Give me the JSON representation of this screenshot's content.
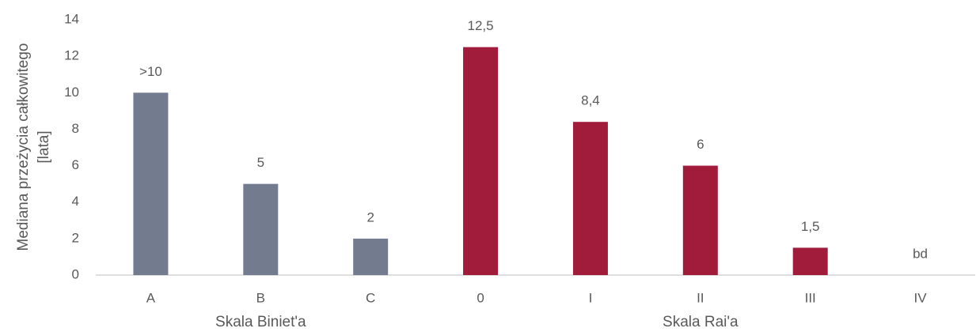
{
  "chart_data": {
    "type": "bar",
    "ylabel": [
      "Mediana przeżycia całkowitego",
      "[lata]"
    ],
    "categories": [
      "A",
      "B",
      "C",
      "0",
      "I",
      "II",
      "III",
      "IV"
    ],
    "values": [
      10,
      5,
      2,
      12.5,
      8.4,
      6,
      1.5,
      null
    ],
    "value_labels": [
      ">10",
      "5",
      "2",
      "12,5",
      "8,4",
      "6",
      "1,5",
      "bd"
    ],
    "colors": [
      "#737b8f",
      "#737b8f",
      "#737b8f",
      "#a01c3a",
      "#a01c3a",
      "#a01c3a",
      "#a01c3a",
      "#a01c3a"
    ],
    "groups": [
      {
        "name": "Skala Biniet'a",
        "size": 3
      },
      {
        "name": "Skala Rai'a",
        "size": 5
      }
    ],
    "ylim": [
      0,
      14
    ],
    "yticks": [
      0,
      2,
      4,
      6,
      8,
      10,
      12,
      14
    ],
    "grid": false
  }
}
